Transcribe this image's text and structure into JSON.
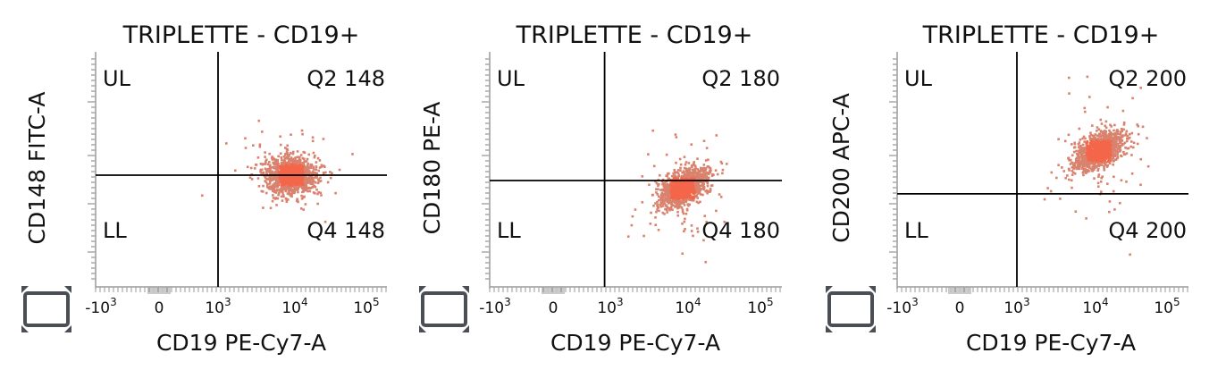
{
  "chart_data": [
    {
      "type": "scatter",
      "title": "TRIPLETTE - CD19+",
      "xlabel": "CD19 PE-Cy7-A",
      "ylabel": "CD148 FITC-A",
      "x_ticks": [
        {
          "base": "-10",
          "exp": "3"
        },
        {
          "base": "0",
          "exp": ""
        },
        {
          "base": "10",
          "exp": "3"
        },
        {
          "base": "10",
          "exp": "4"
        },
        {
          "base": "10",
          "exp": "5"
        }
      ],
      "quadrant_labels": {
        "upper_left": "UL",
        "upper_right": "Q2 148",
        "lower_left": "LL",
        "lower_right": "Q4 148"
      },
      "gate": {
        "x": 1000,
        "y": 1000
      },
      "clusters": [
        {
          "center_x": 9000,
          "center_y": 1000,
          "count": 1300,
          "shape": "round"
        }
      ],
      "point_color": "#f4664a",
      "grid": false
    },
    {
      "type": "scatter",
      "title": "TRIPLETTE - CD19+",
      "xlabel": "CD19 PE-Cy7-A",
      "ylabel": "CD180 PE-A",
      "x_ticks": [
        {
          "base": "-10",
          "exp": "3"
        },
        {
          "base": "0",
          "exp": ""
        },
        {
          "base": "10",
          "exp": "3"
        },
        {
          "base": "10",
          "exp": "4"
        },
        {
          "base": "10",
          "exp": "5"
        }
      ],
      "quadrant_labels": {
        "upper_left": "UL",
        "upper_right": "Q2 180",
        "lower_left": "LL",
        "lower_right": "Q4 180"
      },
      "gate": {
        "x": 900,
        "y": 1000
      },
      "clusters": [
        {
          "center_x": 8500,
          "center_y": 700,
          "count": 1300,
          "shape": "tilted"
        }
      ],
      "point_color": "#f4664a",
      "grid": false
    },
    {
      "type": "scatter",
      "title": "TRIPLETTE - CD19+",
      "xlabel": "CD19 PE-Cy7-A",
      "ylabel": "CD200 APC-A",
      "x_ticks": [
        {
          "base": "-10",
          "exp": "3"
        },
        {
          "base": "0",
          "exp": ""
        },
        {
          "base": "10",
          "exp": "3"
        },
        {
          "base": "10",
          "exp": "4"
        },
        {
          "base": "10",
          "exp": "5"
        }
      ],
      "quadrant_labels": {
        "upper_left": "UL",
        "upper_right": "Q2 200",
        "lower_left": "LL",
        "lower_right": "Q4 200"
      },
      "gate": {
        "x": 1000,
        "y": 600
      },
      "clusters": [
        {
          "center_x": 11000,
          "center_y": 4000,
          "count": 1300,
          "shape": "tilted"
        }
      ],
      "point_color": "#f4664a",
      "grid": false
    }
  ]
}
